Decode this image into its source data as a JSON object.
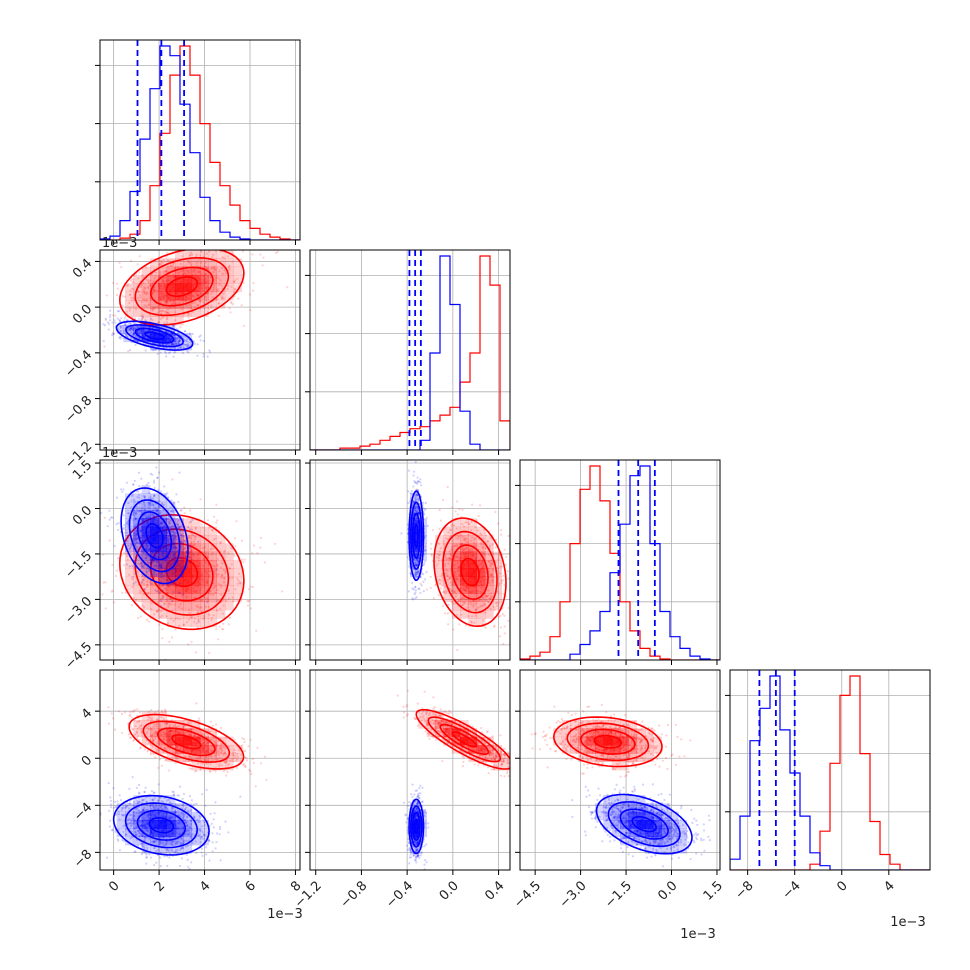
{
  "chart_data": {
    "type": "corner",
    "colors": {
      "series_a": "#0000ff",
      "series_b": "#ff0000",
      "grid": "#b0b0b0"
    },
    "grid": true,
    "parameters": [
      {
        "range": [
          -0.6,
          8.2
        ],
        "ticks": [
          "0",
          "2",
          "4",
          "6",
          "8"
        ],
        "tick_values": [
          0,
          2,
          4,
          6,
          8
        ],
        "offset_label": "1e−3"
      },
      {
        "range": [
          -1.25,
          0.5
        ],
        "ticks": [
          "−1.2",
          "−0.8",
          "−0.4",
          "0.0",
          "0.4"
        ],
        "tick_values": [
          -1.2,
          -0.8,
          -0.4,
          0.0,
          0.4
        ],
        "offset_label": "1e−3"
      },
      {
        "range": [
          -5.0,
          1.6
        ],
        "ticks": [
          "−4.5",
          "−3.0",
          "−1.5",
          "0.0",
          "1.5"
        ],
        "tick_values": [
          -4.5,
          -3.0,
          -1.5,
          0.0,
          1.5
        ],
        "offset_label": "1e−3"
      },
      {
        "range": [
          -9.5,
          7.5
        ],
        "ticks": [
          "−8",
          "−4",
          "0",
          "4"
        ],
        "tick_values": [
          -8,
          -4,
          0,
          4
        ],
        "offset_label": "1e−3"
      }
    ],
    "left_axis": [
      null,
      {
        "ticks": [
          "−1.2",
          "−0.8",
          "−0.4",
          "0.0",
          "0.4"
        ],
        "tick_values": [
          -1.2,
          -0.8,
          -0.4,
          0.0,
          0.4
        ],
        "offset_label": "1e−3"
      },
      {
        "ticks": [
          "−4.5",
          "−3.0",
          "−1.5",
          "0.0",
          "1.5"
        ],
        "tick_values": [
          -4.5,
          -3.0,
          -1.5,
          0.0,
          1.5
        ],
        "offset_label": "1e−3"
      },
      {
        "ticks": [
          "−8",
          "−4",
          "0",
          "4"
        ],
        "tick_values": [
          -8,
          -4,
          0,
          4
        ],
        "offset_label": ""
      }
    ],
    "histograms": [
      {
        "edges": [
          -0.6,
          8.2
        ],
        "series_a": [
          0.5,
          2,
          10,
          25,
          52,
          78,
          100,
          95,
          70,
          45,
          22,
          10,
          4,
          1.5,
          0.5,
          0,
          0,
          0,
          0,
          0
        ],
        "series_b": [
          0,
          0,
          1,
          3,
          10,
          28,
          55,
          85,
          100,
          85,
          60,
          40,
          28,
          18,
          10,
          6,
          3,
          1.5,
          0.5,
          0
        ],
        "quantiles_a": [
          1.05,
          2.1,
          3.1
        ]
      },
      {
        "edges": [
          -1.25,
          0.5
        ],
        "series_a": [
          0,
          0,
          0,
          0,
          0,
          0,
          0,
          0,
          0,
          0,
          0,
          5,
          50,
          100,
          75,
          20,
          3,
          0,
          0,
          0
        ],
        "series_b": [
          0,
          0,
          0,
          1,
          1,
          2,
          3,
          5,
          7,
          9,
          11,
          12,
          15,
          18,
          22,
          35,
          50,
          100,
          85,
          15
        ],
        "quantiles_a": [
          -0.38,
          -0.33,
          -0.28
        ]
      },
      {
        "edges": [
          -5.0,
          1.6
        ],
        "series_a": [
          0,
          0,
          0,
          0,
          0,
          3,
          8,
          15,
          25,
          45,
          70,
          95,
          100,
          60,
          25,
          12,
          6,
          2,
          0.5,
          0
        ],
        "series_b": [
          0.5,
          2,
          4,
          12,
          30,
          60,
          88,
          100,
          82,
          55,
          30,
          15,
          6,
          2,
          0.5,
          0,
          0,
          0,
          0,
          0
        ],
        "quantiles_a": [
          -1.75,
          -1.1,
          -0.55
        ]
      },
      {
        "edges": [
          -9.5,
          7.5
        ],
        "series_a": [
          5,
          25,
          60,
          75,
          90,
          65,
          45,
          25,
          8,
          2,
          0,
          0,
          0,
          0,
          0,
          0,
          0,
          0,
          0,
          0
        ],
        "series_b": [
          0,
          0,
          0,
          0,
          0,
          0,
          0,
          0,
          3,
          20,
          55,
          90,
          100,
          60,
          25,
          8,
          3,
          0,
          0,
          0
        ],
        "quantiles_a": [
          -7.0,
          -5.6,
          -4.0
        ]
      }
    ],
    "pairs": [
      {
        "row": 1,
        "col": 0,
        "series_a": {
          "mean": [
            1.8,
            -0.25
          ],
          "sd": [
            0.8,
            0.06
          ],
          "rho": -0.55,
          "n": 900
        },
        "series_b": {
          "mean": [
            3.0,
            0.18
          ],
          "sd": [
            1.3,
            0.16
          ],
          "rho": 0.35,
          "n": 700
        }
      },
      {
        "row": 2,
        "col": 0,
        "series_a": {
          "mean": [
            1.8,
            -0.9
          ],
          "sd": [
            0.7,
            0.75
          ],
          "rho": -0.3,
          "n": 900
        },
        "series_b": {
          "mean": [
            3.0,
            -2.1
          ],
          "sd": [
            1.3,
            0.9
          ],
          "rho": -0.15,
          "n": 700
        }
      },
      {
        "row": 2,
        "col": 1,
        "series_a": {
          "mean": [
            -0.32,
            -0.9
          ],
          "sd": [
            0.03,
            0.7
          ],
          "rho": 0.0,
          "n": 900
        },
        "series_b": {
          "mean": [
            0.15,
            -2.1
          ],
          "sd": [
            0.15,
            0.85
          ],
          "rho": -0.2,
          "n": 700
        }
      },
      {
        "row": 3,
        "col": 0,
        "series_a": {
          "mean": [
            2.1,
            -5.7
          ],
          "sd": [
            1.0,
            1.2
          ],
          "rho": -0.2,
          "n": 900
        },
        "series_b": {
          "mean": [
            3.2,
            1.4
          ],
          "sd": [
            1.2,
            1.1
          ],
          "rho": -0.55,
          "n": 700
        }
      },
      {
        "row": 3,
        "col": 1,
        "series_a": {
          "mean": [
            -0.32,
            -5.8
          ],
          "sd": [
            0.03,
            1.1
          ],
          "rho": 0.0,
          "n": 900
        },
        "series_b": {
          "mean": [
            0.1,
            1.6
          ],
          "sd": [
            0.2,
            1.2
          ],
          "rho": -0.85,
          "n": 700
        }
      },
      {
        "row": 3,
        "col": 2,
        "series_a": {
          "mean": [
            -0.9,
            -5.6
          ],
          "sd": [
            0.75,
            1.2
          ],
          "rho": -0.45,
          "n": 900
        },
        "series_b": {
          "mean": [
            -2.1,
            1.4
          ],
          "sd": [
            0.85,
            1.0
          ],
          "rho": -0.2,
          "n": 700
        }
      }
    ]
  }
}
